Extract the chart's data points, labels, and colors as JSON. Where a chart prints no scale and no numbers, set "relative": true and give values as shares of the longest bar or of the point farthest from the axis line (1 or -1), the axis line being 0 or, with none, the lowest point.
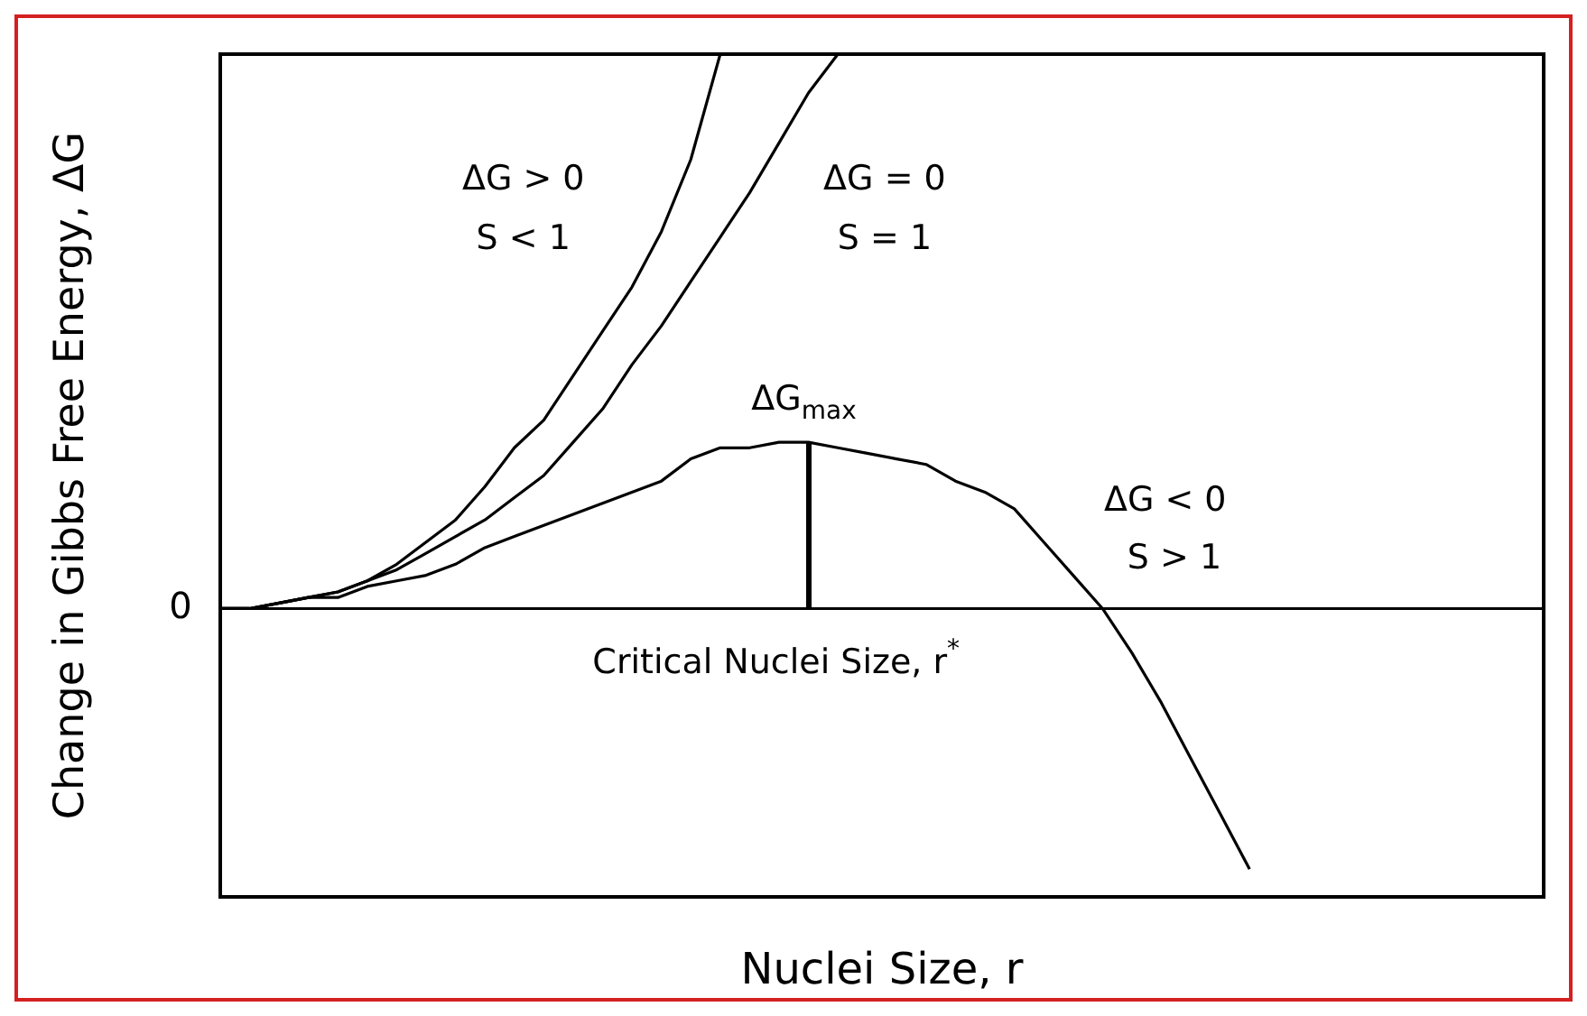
{
  "chart_data": {
    "type": "line",
    "relative": true,
    "xlabel": "Nuclei Size, r",
    "ylabel": "Change in Gibbs Free Energy, ΔG",
    "categories": [
      null,
      null,
      null,
      null,
      null,
      null,
      null,
      null,
      null,
      null,
      null,
      null,
      null,
      null,
      null,
      null,
      null,
      null,
      null,
      null,
      null,
      null,
      null,
      null,
      null,
      null,
      null,
      null,
      null,
      null,
      null,
      null,
      null,
      null,
      null,
      null,
      null,
      null,
      null,
      null,
      null,
      null,
      null,
      null,
      null,
      null
    ],
    "series": [
      {
        "color": "#000000",
        "values": [
          0,
          0,
          0.01,
          0.02,
          0.03,
          0.05,
          0.08,
          0.12,
          0.16,
          0.22,
          0.29,
          0.34,
          0.42,
          0.5,
          0.58,
          0.68,
          0.81,
          1.0,
          null,
          null,
          null,
          null,
          null,
          null,
          null,
          null,
          null,
          null,
          null,
          null,
          null,
          null,
          null,
          null,
          null,
          null,
          null,
          null,
          null,
          null,
          null,
          null,
          null,
          null,
          null,
          null
        ]
      },
      {
        "color": "#000000",
        "values": [
          0,
          0,
          0.01,
          0.02,
          0.03,
          0.05,
          0.07,
          0.1,
          0.13,
          0.16,
          0.2,
          0.24,
          0.3,
          0.36,
          0.44,
          0.51,
          0.59,
          0.67,
          0.75,
          0.84,
          0.93,
          1.0,
          null,
          null,
          null,
          null,
          null,
          null,
          null,
          null,
          null,
          null,
          null,
          null,
          null,
          null,
          null,
          null,
          null,
          null,
          null,
          null,
          null,
          null,
          null,
          null
        ]
      },
      {
        "color": "#000000",
        "values": [
          0,
          0,
          0.01,
          0.02,
          0.02,
          0.04,
          0.05,
          0.06,
          0.08,
          0.11,
          0.13,
          0.15,
          0.17,
          0.19,
          0.21,
          0.23,
          0.27,
          0.29,
          0.29,
          0.3,
          0.3,
          0.29,
          0.28,
          0.27,
          0.26,
          0.23,
          0.21,
          0.18,
          0.12,
          0.06,
          0,
          -0.08,
          -0.17,
          -0.27,
          -0.37,
          -0.47,
          null,
          null,
          null,
          null,
          null,
          null,
          null,
          null,
          null,
          null
        ]
      }
    ],
    "ref_lines": [
      {
        "axis": "y",
        "value": 0,
        "label": "0"
      }
    ],
    "annotations": [
      "ΔG > 0",
      "S < 1",
      "ΔG = 0",
      "S = 1",
      {
        "text": "ΔG$_{max}$",
        "y": 0.3
      },
      "ΔG < 0",
      "S > 1",
      "Critical Nuclei Size, r$^{*}$"
    ]
  }
}
